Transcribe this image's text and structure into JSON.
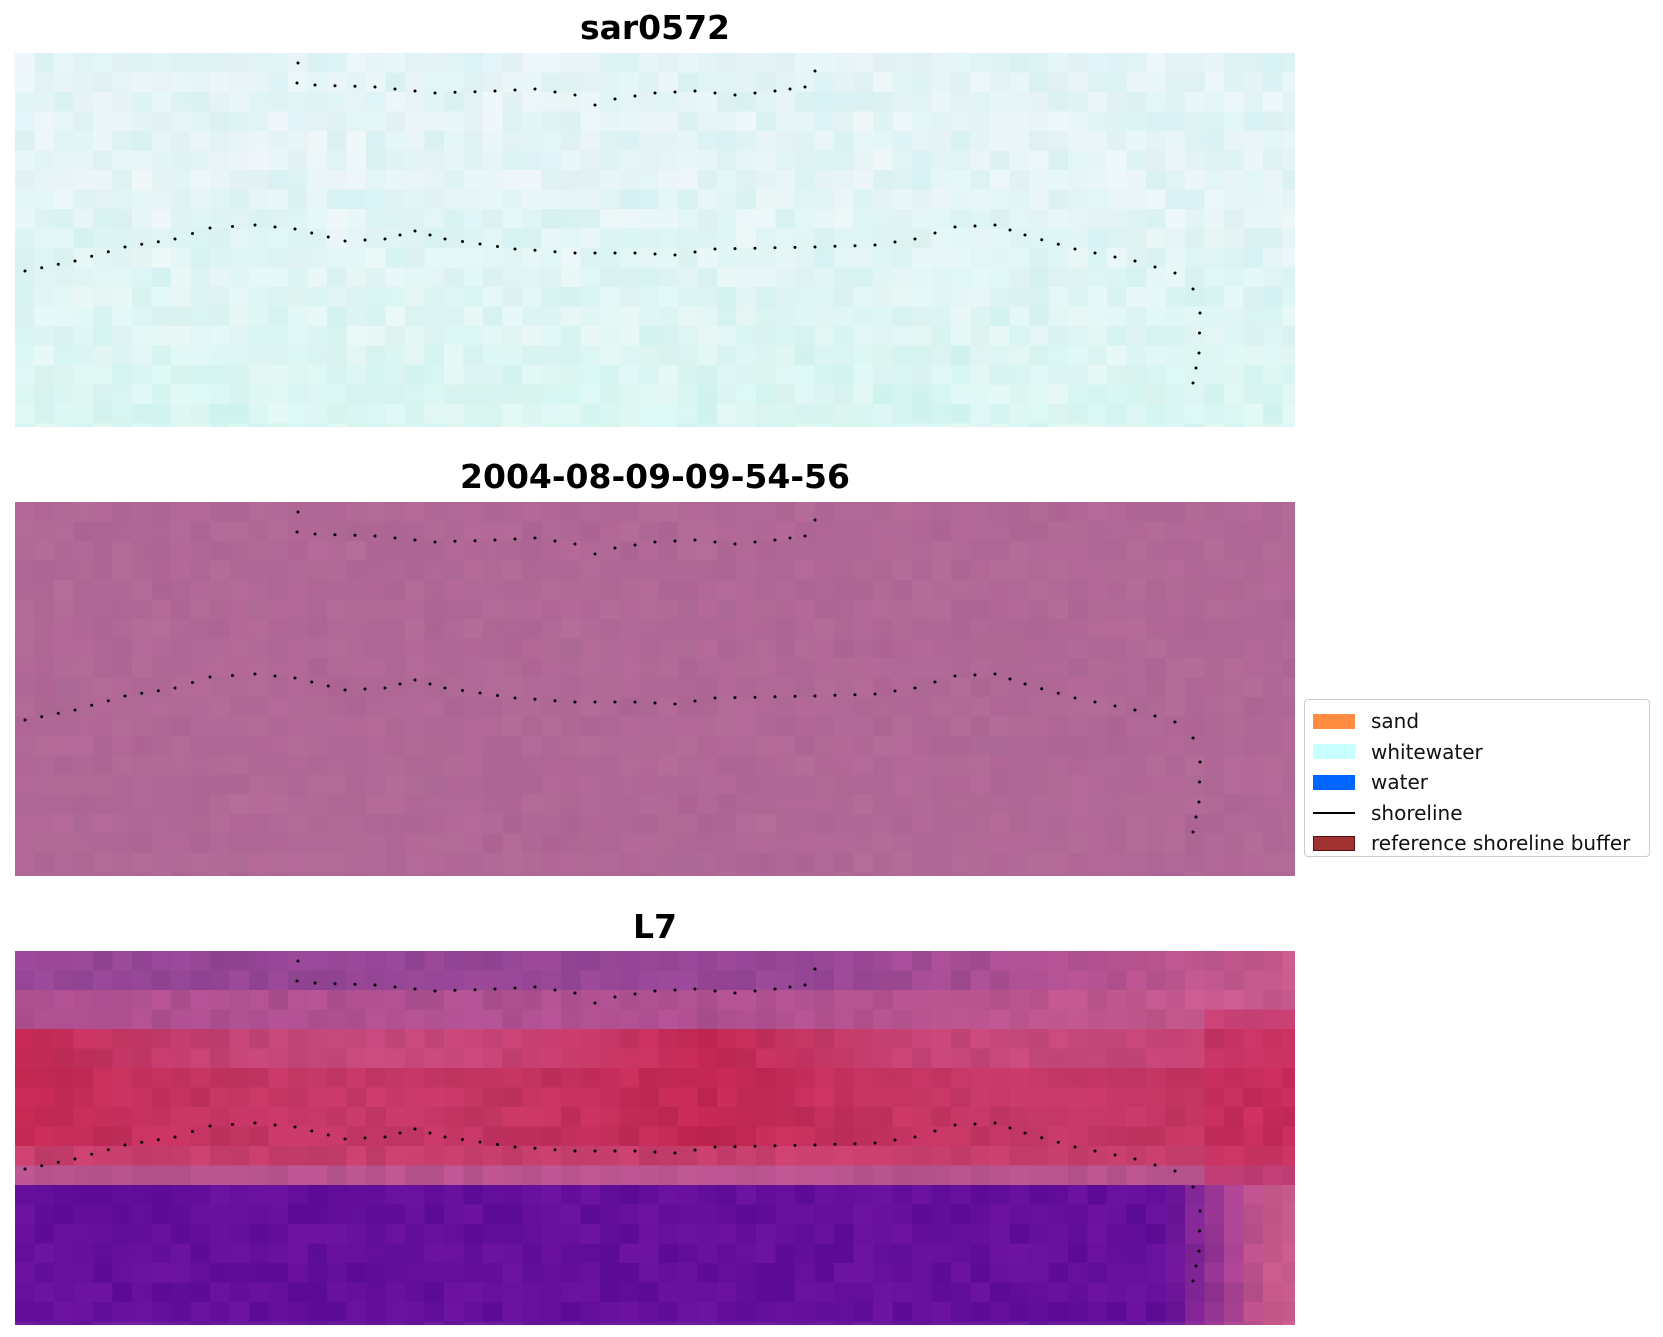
{
  "panels": [
    {
      "title": "sar0572",
      "style": "light"
    },
    {
      "title": "2004-08-09-09-54-56",
      "style": "mauve"
    },
    {
      "title": "L7",
      "style": "rgb"
    }
  ],
  "legend": {
    "items": [
      {
        "label": "sand",
        "kind": "patch",
        "color": "#ff8c40",
        "edge": "#ff8c40"
      },
      {
        "label": "whitewater",
        "kind": "patch",
        "color": "#c8ffff",
        "edge": "#c8ffff"
      },
      {
        "label": "water",
        "kind": "patch",
        "color": "#0064ff",
        "edge": "#0064ff"
      },
      {
        "label": "shoreline",
        "kind": "line",
        "color": "#000000"
      },
      {
        "label": "reference shoreline buffer",
        "kind": "patch",
        "color": "#a03232",
        "edge": "#5a1010"
      }
    ]
  },
  "colors": {
    "light_base": "#e4f4f6",
    "mauve_base": "#b06896",
    "shoreline_dots": "#000000"
  }
}
